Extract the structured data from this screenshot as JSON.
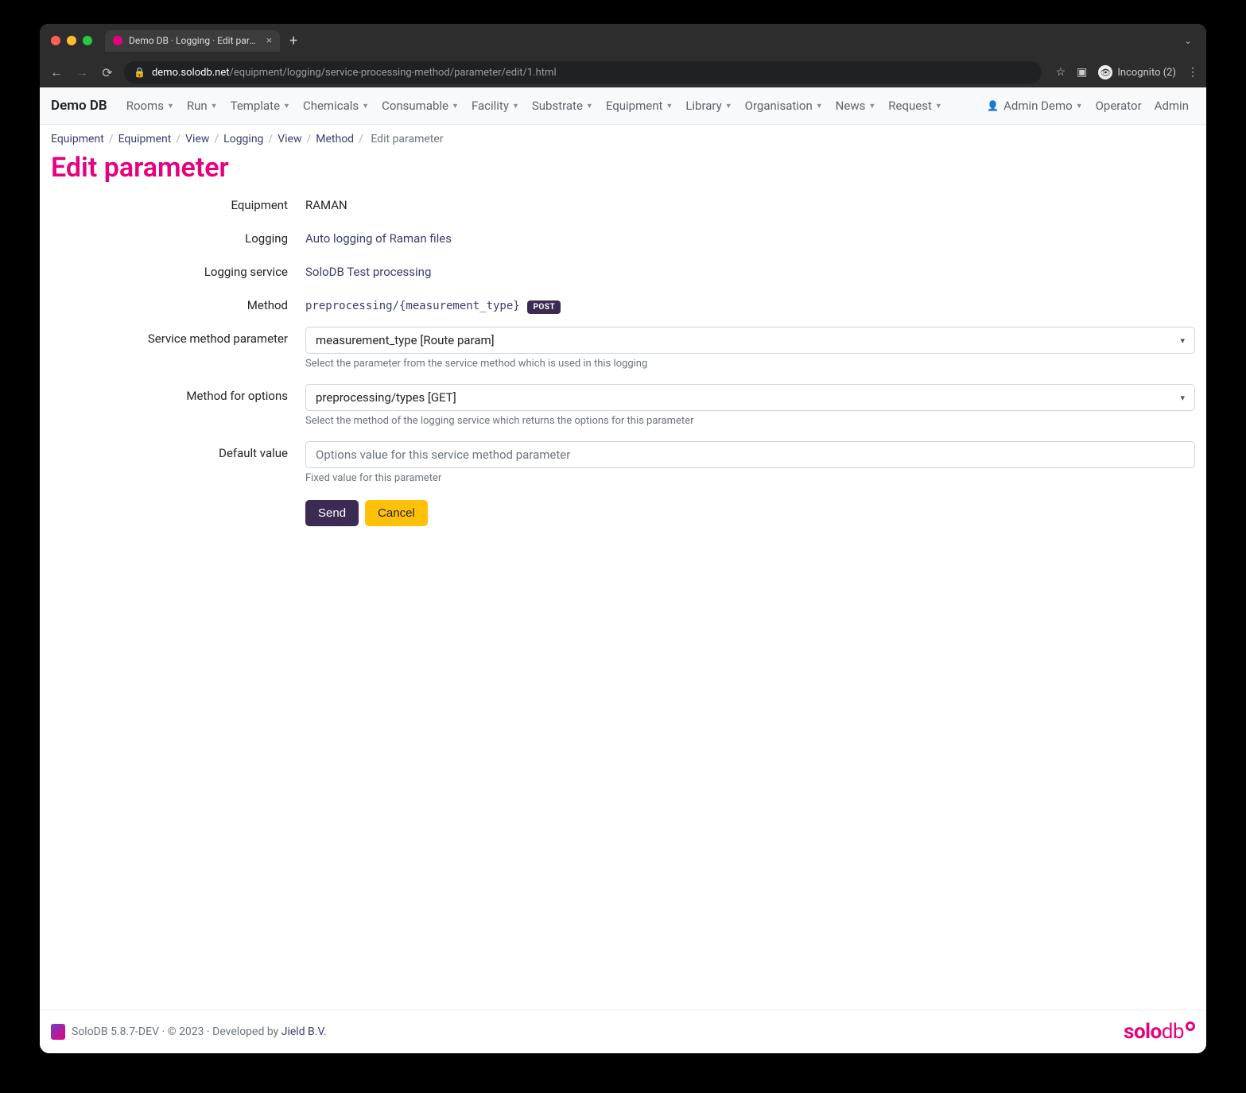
{
  "browser": {
    "tab_title": "Demo DB · Logging · Edit param",
    "url_host": "demo.solodb.net",
    "url_path": "/equipment/logging/service-processing-method/parameter/edit/1.html",
    "incognito_label": "Incognito (2)"
  },
  "navbar": {
    "brand": "Demo DB",
    "items": [
      {
        "label": "Rooms",
        "dropdown": true
      },
      {
        "label": "Run",
        "dropdown": true
      },
      {
        "label": "Template",
        "dropdown": true
      },
      {
        "label": "Chemicals",
        "dropdown": true
      },
      {
        "label": "Consumable",
        "dropdown": true
      },
      {
        "label": "Facility",
        "dropdown": true
      },
      {
        "label": "Substrate",
        "dropdown": true
      },
      {
        "label": "Equipment",
        "dropdown": true
      },
      {
        "label": "Library",
        "dropdown": true
      },
      {
        "label": "Organisation",
        "dropdown": true
      },
      {
        "label": "News",
        "dropdown": true
      },
      {
        "label": "Request",
        "dropdown": true
      }
    ],
    "user_items": [
      {
        "label": "Admin Demo",
        "dropdown": true,
        "icon": true
      },
      {
        "label": "Operator",
        "dropdown": false
      },
      {
        "label": "Admin",
        "dropdown": false
      }
    ]
  },
  "breadcrumb": {
    "items": [
      "Equipment",
      "Equipment",
      "View",
      "Logging",
      "View",
      "Method"
    ],
    "active": "Edit parameter"
  },
  "page": {
    "title": "Edit parameter",
    "fields": {
      "equipment": {
        "label": "Equipment",
        "value": "RAMAN"
      },
      "logging": {
        "label": "Logging",
        "value": "Auto logging of Raman files"
      },
      "logging_service": {
        "label": "Logging service",
        "value": "SoloDB Test processing"
      },
      "method": {
        "label": "Method",
        "value": "preprocessing/{measurement_type}",
        "badge": "POST"
      },
      "service_method_parameter": {
        "label": "Service method parameter",
        "value": "measurement_type [Route param]",
        "help": "Select the parameter from the service method which is used in this logging"
      },
      "method_for_options": {
        "label": "Method for options",
        "value": "preprocessing/types [GET]",
        "help": "Select the method of the logging service which returns the options for this parameter"
      },
      "default_value": {
        "label": "Default value",
        "placeholder": "Options value for this service method parameter",
        "help": "Fixed value for this parameter"
      }
    },
    "buttons": {
      "send": "Send",
      "cancel": "Cancel"
    }
  },
  "footer": {
    "version": "SoloDB 5.8.7-DEV",
    "copyright": "© 2023",
    "developed_by_text": "Developed by",
    "developed_by_link": "Jield B.V.",
    "brand_main": "solo",
    "brand_sub": "db"
  },
  "colors": {
    "accent": "#e6007e",
    "primary_btn": "#3b2a52",
    "warning_btn": "#ffc107",
    "link": "#3a3e6e"
  }
}
